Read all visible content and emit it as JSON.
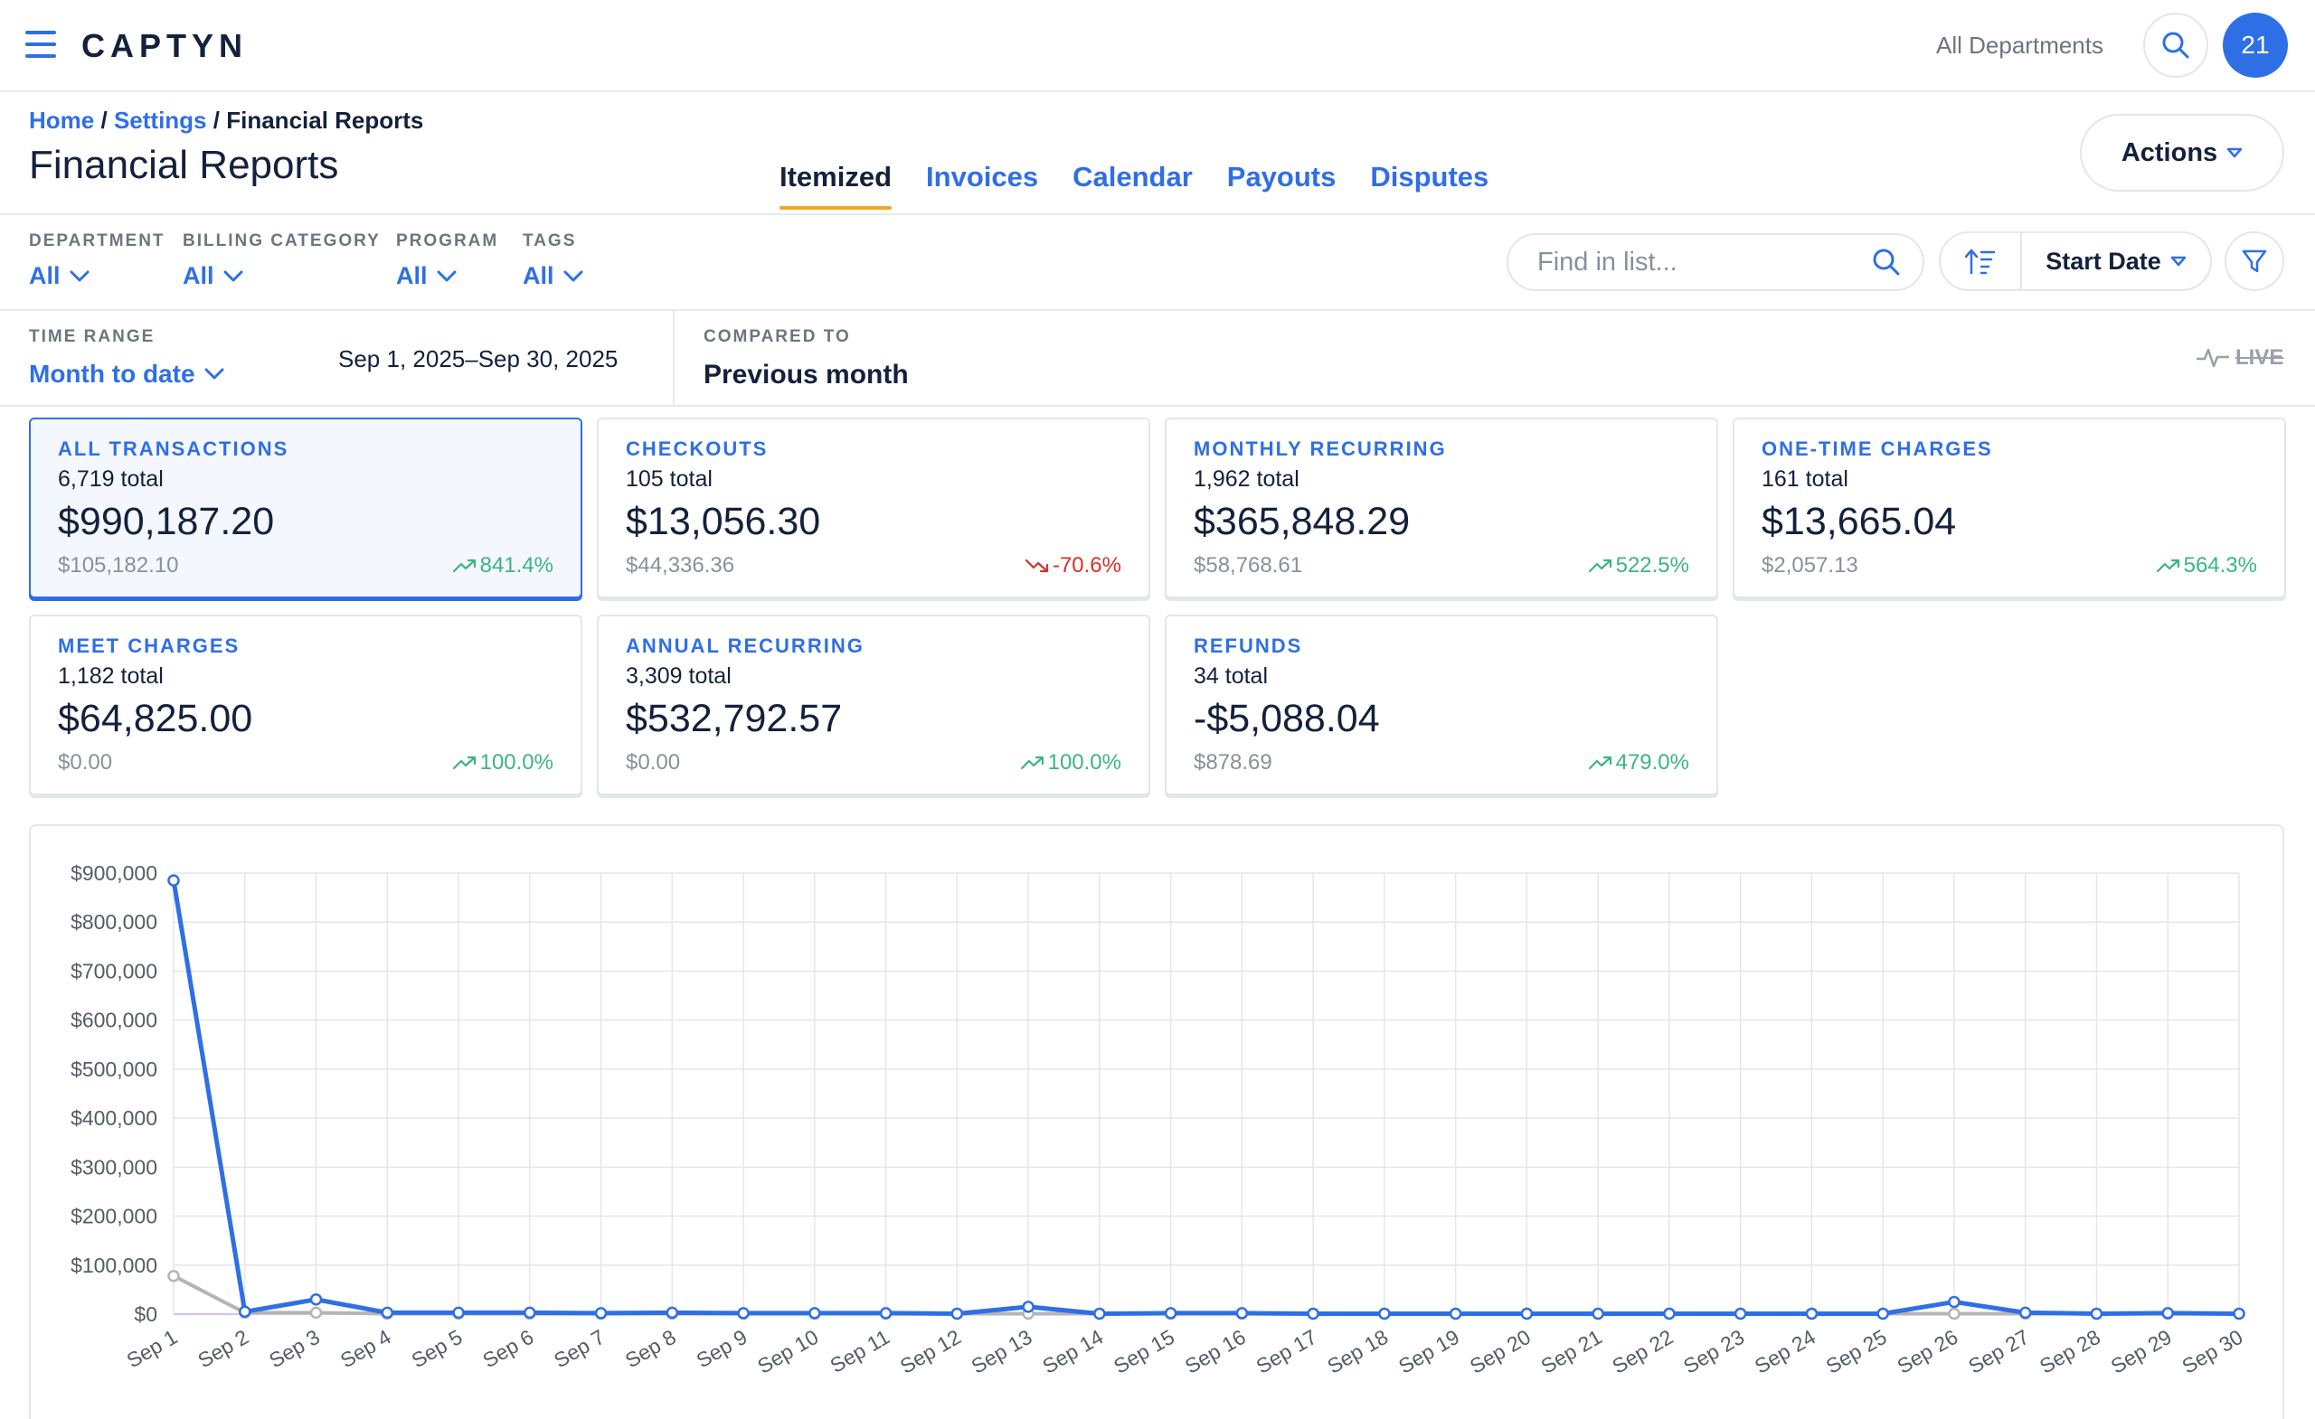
{
  "header": {
    "brand_name": "CAPTYN",
    "department_selector": "All Departments",
    "avatar_text": "21"
  },
  "breadcrumb": {
    "home": "Home",
    "settings": "Settings",
    "current": "Financial Reports",
    "separator": "/"
  },
  "page": {
    "title": "Financial Reports",
    "actions_label": "Actions"
  },
  "tabs": [
    {
      "label": "Itemized",
      "active": true
    },
    {
      "label": "Invoices",
      "active": false
    },
    {
      "label": "Calendar",
      "active": false
    },
    {
      "label": "Payouts",
      "active": false
    },
    {
      "label": "Disputes",
      "active": false
    }
  ],
  "filters": {
    "department": {
      "label": "DEPARTMENT",
      "value": "All"
    },
    "billing_category": {
      "label": "BILLING CATEGORY",
      "value": "All"
    },
    "program": {
      "label": "PROGRAM",
      "value": "All"
    },
    "tags": {
      "label": "TAGS",
      "value": "All"
    },
    "search_placeholder": "Find in list...",
    "sort_label": "Start Date"
  },
  "time_range": {
    "label": "TIME RANGE",
    "value": "Month to date",
    "dates": "Sep 1, 2025–Sep 30, 2025",
    "compared_label": "COMPARED TO",
    "compared_value": "Previous month",
    "live_label": "LIVE"
  },
  "cards": [
    {
      "title": "ALL TRANSACTIONS",
      "count": "6,719 total",
      "amount": "$990,187.20",
      "previous": "$105,182.10",
      "change": "841.4%",
      "trend": "up",
      "selected": true
    },
    {
      "title": "CHECKOUTS",
      "count": "105 total",
      "amount": "$13,056.30",
      "previous": "$44,336.36",
      "change": "-70.6%",
      "trend": "down",
      "selected": false
    },
    {
      "title": "MONTHLY RECURRING",
      "count": "1,962 total",
      "amount": "$365,848.29",
      "previous": "$58,768.61",
      "change": "522.5%",
      "trend": "up",
      "selected": false
    },
    {
      "title": "ONE-TIME CHARGES",
      "count": "161 total",
      "amount": "$13,665.04",
      "previous": "$2,057.13",
      "change": "564.3%",
      "trend": "up",
      "selected": false
    },
    {
      "title": "MEET CHARGES",
      "count": "1,182 total",
      "amount": "$64,825.00",
      "previous": "$0.00",
      "change": "100.0%",
      "trend": "up",
      "selected": false
    },
    {
      "title": "ANNUAL RECURRING",
      "count": "3,309 total",
      "amount": "$532,792.57",
      "previous": "$0.00",
      "change": "100.0%",
      "trend": "up",
      "selected": false
    },
    {
      "title": "REFUNDS",
      "count": "34 total",
      "amount": "-$5,088.04",
      "previous": "$878.69",
      "change": "479.0%",
      "trend": "up",
      "selected": false
    }
  ],
  "colors": {
    "accent": "#2f6fe6",
    "highlight": "#f5a623",
    "positive": "#3bb580",
    "negative": "#d93025",
    "comparison_series": "#b5b5b5"
  },
  "chart_data": {
    "type": "line",
    "x": [
      "Sep 1",
      "Sep 2",
      "Sep 3",
      "Sep 4",
      "Sep 5",
      "Sep 6",
      "Sep 7",
      "Sep 8",
      "Sep 9",
      "Sep 10",
      "Sep 11",
      "Sep 12",
      "Sep 13",
      "Sep 14",
      "Sep 15",
      "Sep 16",
      "Sep 17",
      "Sep 18",
      "Sep 19",
      "Sep 20",
      "Sep 21",
      "Sep 22",
      "Sep 23",
      "Sep 24",
      "Sep 25",
      "Sep 26",
      "Sep 27",
      "Sep 28",
      "Sep 29",
      "Sep 30"
    ],
    "series": [
      {
        "values": [
          885000,
          5000,
          30000,
          3000,
          3000,
          3000,
          2000,
          3000,
          2000,
          2000,
          2000,
          1000,
          15000,
          1000,
          2000,
          2000,
          1000,
          1000,
          1000,
          1000,
          1000,
          1000,
          1000,
          1000,
          1000,
          25000,
          3000,
          1000,
          2000,
          1000
        ],
        "color": "#2f6fe6"
      },
      {
        "values": [
          78000,
          3000,
          3000,
          1000,
          1000,
          1000,
          1000,
          1000,
          1000,
          1000,
          1000,
          1000,
          1000,
          1000,
          1000,
          1000,
          1000,
          1000,
          1000,
          1000,
          1000,
          1000,
          1000,
          1000,
          1000,
          1000,
          1000,
          1000,
          1000,
          1000
        ],
        "color": "#b5b5b5"
      }
    ],
    "y_ticks": [
      "$0",
      "$100,000",
      "$200,000",
      "$300,000",
      "$400,000",
      "$500,000",
      "$600,000",
      "$700,000",
      "$800,000",
      "$900,000"
    ],
    "ylim": [
      0,
      900000
    ],
    "grid": true,
    "legend": "none"
  }
}
